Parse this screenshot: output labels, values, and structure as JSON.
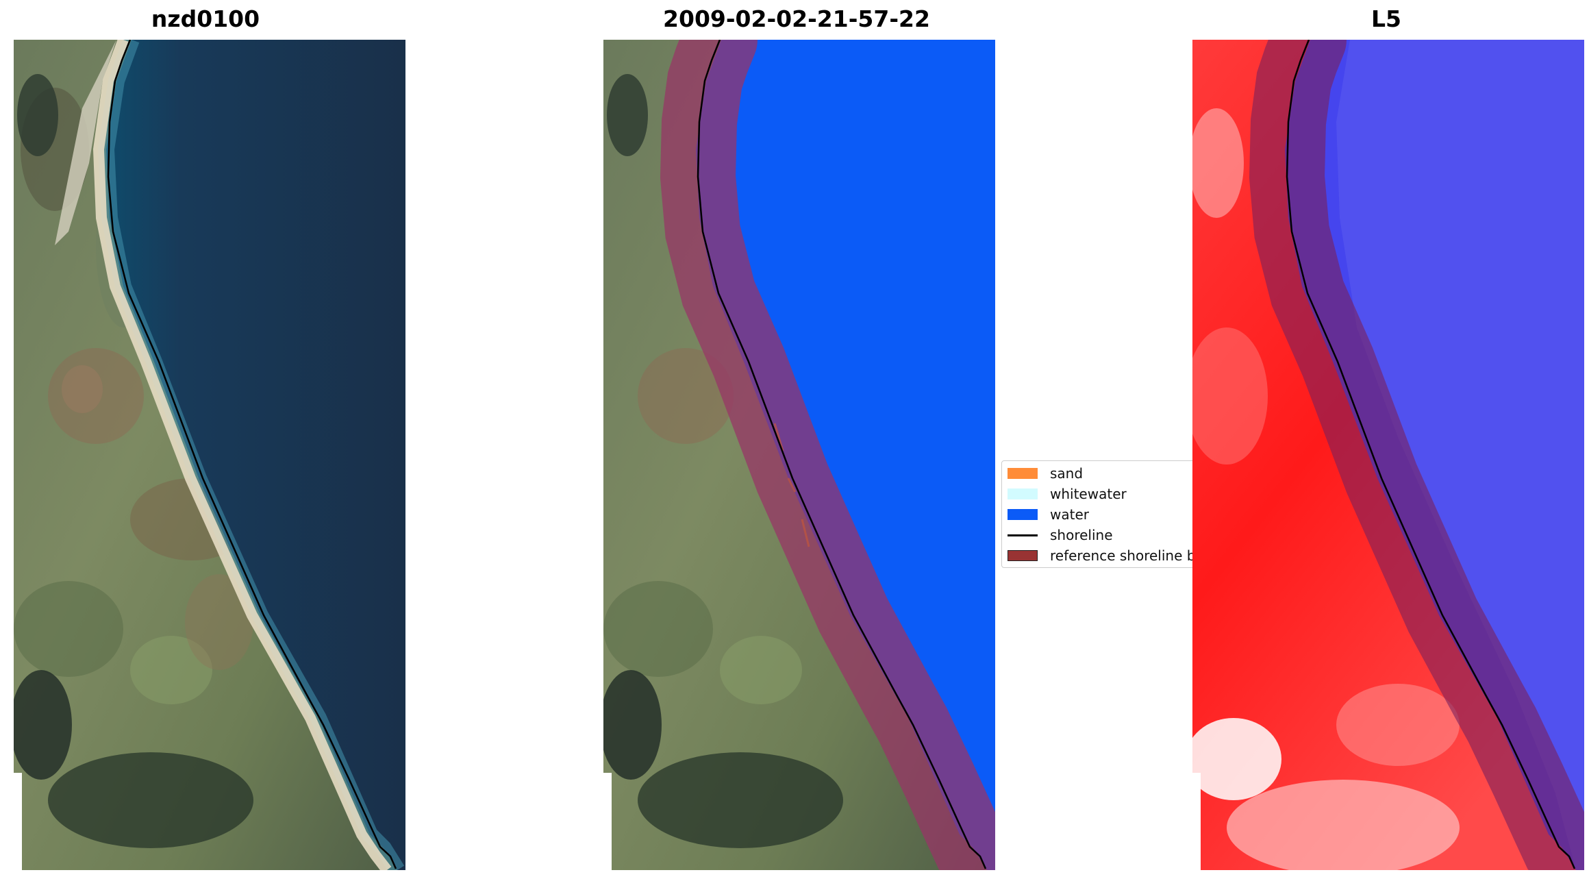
{
  "panels": [
    {
      "title": "nzd0100"
    },
    {
      "title": "2009-02-02-21-57-22"
    },
    {
      "title": "L5"
    }
  ],
  "legend": {
    "items": [
      {
        "label": "sand",
        "color": "#ff8c38"
      },
      {
        "label": "whitewater",
        "color": "#d2fbff"
      },
      {
        "label": "water",
        "color": "#0b5bf7"
      },
      {
        "label": "shoreline",
        "color": "#000000"
      },
      {
        "label": "reference shoreline buffer",
        "color": "#993333"
      }
    ]
  }
}
